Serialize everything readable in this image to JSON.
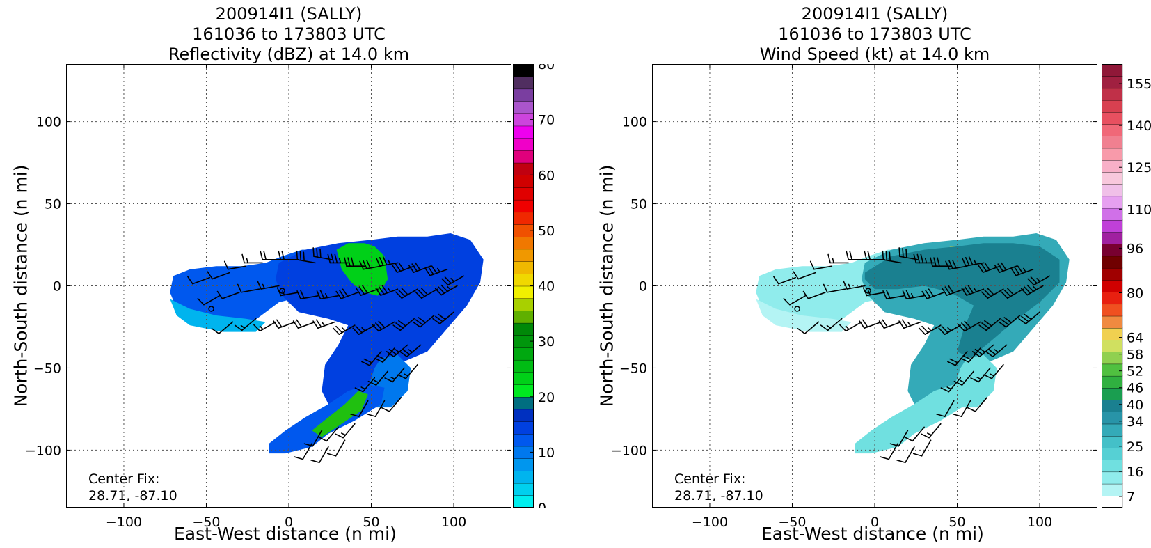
{
  "storm_id": "200914I1 (SALLY)",
  "time_range": "161036 to 173803 UTC",
  "center_fix": {
    "label": "Center Fix:",
    "coords": "28.71, -87.10",
    "x_nmi": 0,
    "y_nmi": 0
  },
  "panels": [
    {
      "title_line3": "Reflectivity (dBZ) at 14.0 km"
    },
    {
      "title_line3": "Wind Speed (kt) at 14.0 km"
    }
  ],
  "axis": {
    "xlabel": "East-West distance (n mi)",
    "ylabel": "North-South distance (n mi)",
    "xlim": [
      -135,
      135
    ],
    "ylim": [
      -135,
      135
    ],
    "xticks": [
      -100,
      -50,
      0,
      50,
      100
    ],
    "yticks": [
      -100,
      -50,
      0,
      50,
      100
    ],
    "xtick_labels": [
      "−100",
      "−50",
      "0",
      "50",
      "100"
    ],
    "ytick_labels": [
      "−100",
      "−50",
      "0",
      "50",
      "100"
    ],
    "grid": true
  },
  "chart_data": [
    {
      "type": "heatmap",
      "title": "200914I1 (SALLY) 161036 to 173803 UTC Reflectivity (dBZ) at 14.0 km",
      "xlabel": "East-West distance (n mi)",
      "ylabel": "North-South distance (n mi)",
      "xlim": [
        -135,
        135
      ],
      "ylim": [
        -135,
        135
      ],
      "colorbar": {
        "label_values": [
          0,
          10,
          20,
          30,
          40,
          50,
          60,
          70,
          80
        ],
        "labels": [
          "0",
          "10",
          "20",
          "30",
          "40",
          "50",
          "60",
          "70",
          "80"
        ],
        "colors": [
          "#00eeee",
          "#00d0ee",
          "#00b4ee",
          "#0096ee",
          "#0078ee",
          "#0058ee",
          "#0040e0",
          "#0030c0",
          "#006e80",
          "#00e820",
          "#00d018",
          "#00bc14",
          "#00a810",
          "#00960c",
          "#008808",
          "#60b000",
          "#a8d000",
          "#f0f000",
          "#f0d800",
          "#f0b800",
          "#f09800",
          "#f07800",
          "#f05000",
          "#f02800",
          "#f00000",
          "#e00000",
          "#d00000",
          "#c00010",
          "#e0007c",
          "#f000c8",
          "#ee00ee",
          "#cc44dd",
          "#aa55cc",
          "#7a3ea0",
          "#502e60",
          "#000000"
        ]
      },
      "fields": [
        {
          "shape": "west",
          "value_dbz": 10,
          "color": "#0058ee"
        },
        {
          "shape": "main",
          "value_dbz": 12,
          "color": "#0040e0"
        },
        {
          "shape": "south",
          "value_dbz": 8,
          "color": "#0078ee"
        },
        {
          "shape": "tail",
          "value_dbz": 10,
          "color": "#0058ee"
        },
        {
          "shape": "west_edge",
          "value_dbz": 5,
          "color": "#00b4ee"
        },
        {
          "shape": "core_green",
          "value_dbz": 22,
          "color": "#00d018"
        },
        {
          "shape": "tail_green",
          "value_dbz": 22,
          "color": "#20c010"
        }
      ]
    },
    {
      "type": "heatmap",
      "title": "200914I1 (SALLY) 161036 to 173803 UTC Wind Speed (kt) at 14.0 km",
      "xlabel": "East-West distance (n mi)",
      "ylabel": "North-South distance (n mi)",
      "xlim": [
        -135,
        135
      ],
      "ylim": [
        -135,
        135
      ],
      "colorbar": {
        "label_values": [
          7,
          16,
          25,
          34,
          40,
          46,
          52,
          58,
          64,
          80,
          96,
          110,
          125,
          140,
          155
        ],
        "labels": [
          "7",
          "16",
          "25",
          "34",
          "40",
          "46",
          "52",
          "58",
          "64",
          "80",
          "96",
          "110",
          "125",
          "140",
          "155"
        ],
        "colors": [
          "#ffffff",
          "#b4f4f4",
          "#90ecec",
          "#70e0e0",
          "#56d0d4",
          "#44c0c8",
          "#34aab8",
          "#2894a8",
          "#1a8090",
          "#1a9e50",
          "#30b040",
          "#50c040",
          "#90d050",
          "#d0e060",
          "#f0d050",
          "#f08a40",
          "#f05020",
          "#e82010",
          "#d00000",
          "#a00000",
          "#700000",
          "#780030",
          "#a020a0",
          "#c040d8",
          "#d070e8",
          "#e6a0f0",
          "#f0c0e8",
          "#f8c8dc",
          "#f8b0c8",
          "#f89aaa",
          "#f08090",
          "#f06878",
          "#e85060",
          "#d84050",
          "#c03048",
          "#a02040",
          "#901838"
        ]
      },
      "fields": [
        {
          "shape": "west",
          "value_kt": 10,
          "color": "#90ecec"
        },
        {
          "shape": "main",
          "value_kt": 20,
          "color": "#34aab8"
        },
        {
          "shape": "south",
          "value_kt": 12,
          "color": "#70e0e0"
        },
        {
          "shape": "tail",
          "value_kt": 12,
          "color": "#70e0e0"
        },
        {
          "shape": "west_edge",
          "value_kt": 8,
          "color": "#b4f4f4"
        },
        {
          "shape": "core_fast",
          "value_kt": 40,
          "color": "#a0c860"
        },
        {
          "shape": "dark_band",
          "value_kt": 25,
          "color": "#1a8090"
        }
      ]
    }
  ],
  "wind_barbs": {
    "color": "#000000",
    "units": "kt",
    "x_nmi": [
      -48,
      -36,
      -26,
      -16,
      -5,
      6,
      16,
      26,
      36,
      46,
      56,
      66,
      76,
      86,
      96,
      106,
      -42,
      -30,
      -18,
      -6,
      6,
      18,
      30,
      42,
      54,
      66,
      78,
      90,
      102,
      -34,
      -20,
      -8,
      4,
      16,
      28,
      40,
      52,
      64,
      76,
      88,
      100,
      56,
      64,
      72,
      80,
      52,
      60,
      70,
      78,
      48,
      58,
      68,
      20,
      30,
      40,
      14,
      24,
      34
    ],
    "y_nmi": [
      5,
      8,
      12,
      14,
      16,
      16,
      14,
      16,
      14,
      12,
      12,
      14,
      12,
      12,
      10,
      6,
      -6,
      -4,
      -2,
      0,
      -4,
      -6,
      -6,
      -4,
      -2,
      -2,
      -2,
      -2,
      0,
      -22,
      -20,
      -22,
      -22,
      -22,
      -22,
      -24,
      -24,
      -22,
      -20,
      -18,
      -16,
      -40,
      -38,
      -36,
      -36,
      -56,
      -52,
      -50,
      -48,
      -70,
      -70,
      -68,
      -88,
      -86,
      -84,
      -96,
      -98,
      -94
    ],
    "speed_kt": [
      10,
      10,
      10,
      15,
      20,
      20,
      30,
      30,
      35,
      30,
      30,
      35,
      30,
      30,
      35,
      25,
      10,
      10,
      10,
      15,
      15,
      20,
      25,
      30,
      30,
      35,
      30,
      30,
      35,
      10,
      15,
      15,
      20,
      20,
      25,
      25,
      25,
      30,
      30,
      30,
      30,
      20,
      20,
      25,
      25,
      15,
      15,
      15,
      15,
      10,
      10,
      10,
      10,
      10,
      15,
      10,
      10,
      10
    ],
    "dir_deg": [
      250,
      250,
      260,
      270,
      270,
      270,
      280,
      280,
      270,
      270,
      260,
      260,
      250,
      250,
      250,
      240,
      240,
      250,
      260,
      260,
      260,
      260,
      260,
      250,
      250,
      250,
      240,
      240,
      240,
      230,
      230,
      240,
      250,
      250,
      250,
      240,
      240,
      240,
      230,
      230,
      230,
      220,
      220,
      230,
      230,
      220,
      220,
      220,
      220,
      210,
      210,
      220,
      210,
      220,
      220,
      210,
      210,
      210
    ]
  },
  "markers": [
    {
      "x_nmi": -47,
      "y_nmi": -14
    },
    {
      "x_nmi": -4,
      "y_nmi": -3
    }
  ]
}
